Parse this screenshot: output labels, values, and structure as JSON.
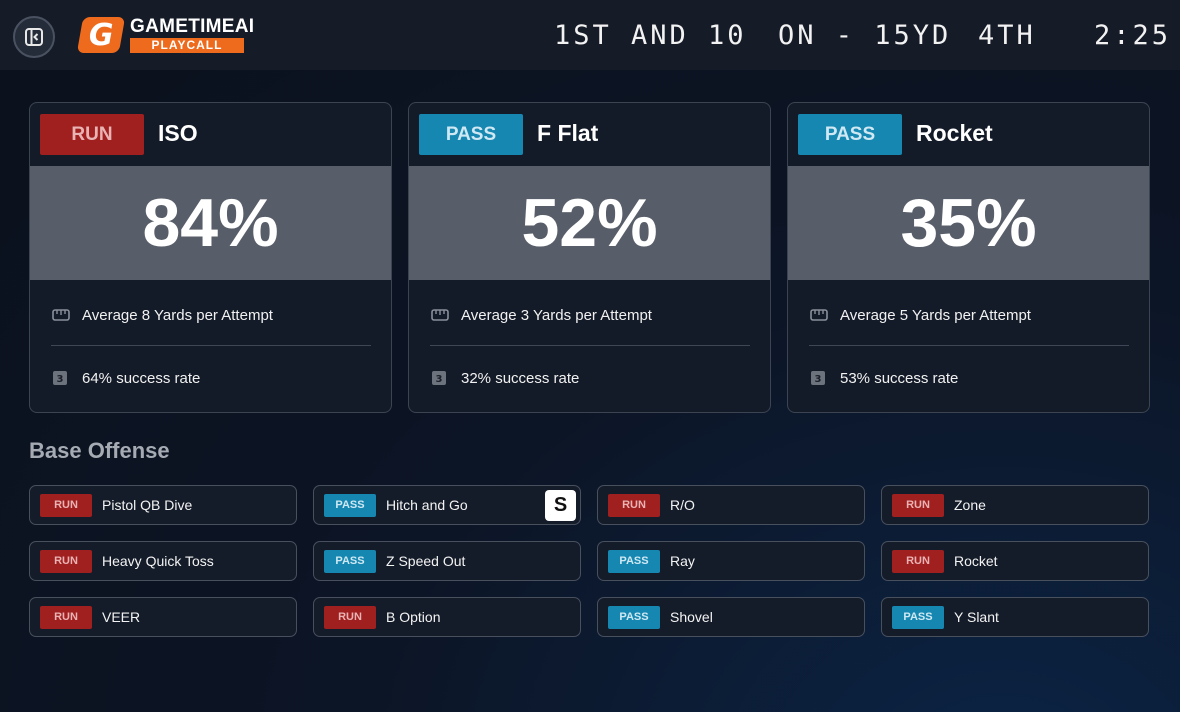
{
  "header": {
    "brand_title": "GAMETIMEAI",
    "brand_sub": "PLAYCALL",
    "brand_letter": "G",
    "down_distance": "1ST AND 10",
    "field_position": "ON - 15YD",
    "quarter": "4TH",
    "clock": "2:25"
  },
  "cards": [
    {
      "type": "RUN",
      "title": "ISO",
      "pct": "84%",
      "avg": "Average 8 Yards per Attempt",
      "success": "64% success rate"
    },
    {
      "type": "PASS",
      "title": "F Flat",
      "pct": "52%",
      "avg": "Average 3 Yards per Attempt",
      "success": "32% success rate"
    },
    {
      "type": "PASS",
      "title": "Rocket",
      "pct": "35%",
      "avg": "Average 5 Yards per Attempt",
      "success": "53% success rate"
    }
  ],
  "base_offense": {
    "title": "Base Offense",
    "plays": [
      {
        "type": "RUN",
        "name": "Pistol QB Dive"
      },
      {
        "type": "PASS",
        "name": "Hitch and Go",
        "badge": "S"
      },
      {
        "type": "RUN",
        "name": "R/O"
      },
      {
        "type": "RUN",
        "name": "Zone"
      },
      {
        "type": "RUN",
        "name": "Heavy Quick Toss"
      },
      {
        "type": "PASS",
        "name": "Z Speed Out"
      },
      {
        "type": "PASS",
        "name": "Ray"
      },
      {
        "type": "RUN",
        "name": "Rocket"
      },
      {
        "type": "RUN",
        "name": "VEER"
      },
      {
        "type": "RUN",
        "name": "B Option"
      },
      {
        "type": "PASS",
        "name": "Shovel"
      },
      {
        "type": "PASS",
        "name": "Y Slant"
      }
    ]
  },
  "colors": {
    "run": "#a01f1f",
    "pass": "#1687b0",
    "accent": "#ee6a1c"
  },
  "icons": {
    "collapse": "sidebar-collapse-icon",
    "yards": "ruler-icon",
    "success": "counter-icon"
  }
}
